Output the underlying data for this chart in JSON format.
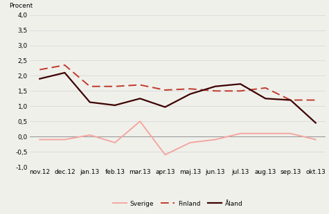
{
  "x_labels": [
    "nov.12",
    "dec.12",
    "jan.13",
    "feb.13",
    "mar.13",
    "apr.13",
    "maj.13",
    "jun.13",
    "jul.13",
    "aug.13",
    "sep.13",
    "okt.13"
  ],
  "sverige": [
    -0.1,
    -0.1,
    0.05,
    -0.2,
    0.5,
    -0.6,
    -0.2,
    -0.1,
    0.1,
    0.1,
    0.1,
    -0.1
  ],
  "finland": [
    2.2,
    2.35,
    1.65,
    1.65,
    1.7,
    1.53,
    1.57,
    1.5,
    1.5,
    1.6,
    1.2,
    1.2
  ],
  "aland": [
    1.9,
    2.1,
    1.13,
    1.03,
    1.25,
    0.97,
    1.4,
    1.65,
    1.73,
    1.25,
    1.2,
    0.45
  ],
  "sverige_color": "#f4a6a0",
  "finland_color": "#c0392b",
  "aland_color": "#3d0000",
  "ylabel": "Procent",
  "ylim": [
    -1.0,
    4.0
  ],
  "yticks": [
    -1.0,
    -0.5,
    0.0,
    0.5,
    1.0,
    1.5,
    2.0,
    2.5,
    3.0,
    3.5,
    4.0
  ],
  "legend_labels": [
    "Sverige",
    "Finland",
    "Åland"
  ],
  "bg_color": "#f0f0eb",
  "grid_color": "#d8d8d8",
  "zero_line_color": "#999999"
}
